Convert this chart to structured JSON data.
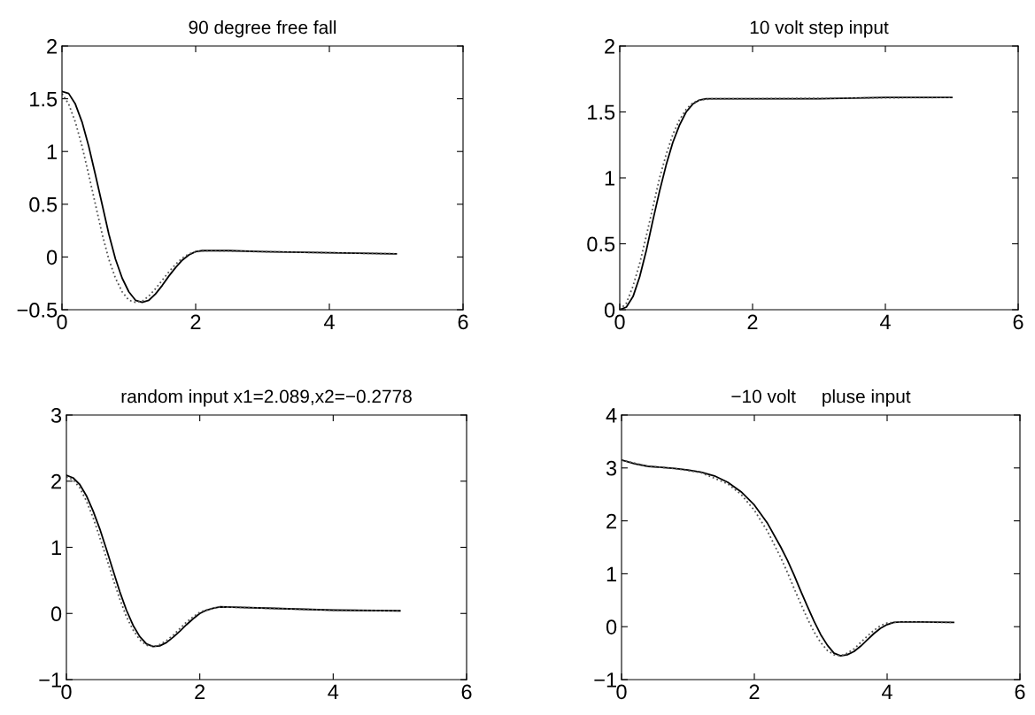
{
  "chart_data": [
    {
      "type": "line",
      "title": "90 degree free fall",
      "xlim": [
        0,
        6
      ],
      "xticks": [
        0,
        2,
        4,
        6
      ],
      "ylim": [
        -0.5,
        2
      ],
      "yticks": [
        -0.5,
        0,
        0.5,
        1,
        1.5,
        2
      ],
      "grid": false,
      "legend": false,
      "series": [
        {
          "color": "#000000",
          "line_style": "solid",
          "x": [
            0,
            0.1,
            0.2,
            0.3,
            0.4,
            0.5,
            0.6,
            0.7,
            0.8,
            0.9,
            1.0,
            1.1,
            1.2,
            1.3,
            1.4,
            1.5,
            1.6,
            1.7,
            1.8,
            1.9,
            2.0,
            2.1,
            2.5,
            3,
            4,
            5
          ],
          "values": [
            1.57,
            1.55,
            1.45,
            1.28,
            1.05,
            0.78,
            0.5,
            0.22,
            -0.02,
            -0.2,
            -0.33,
            -0.41,
            -0.43,
            -0.41,
            -0.35,
            -0.27,
            -0.18,
            -0.1,
            -0.03,
            0.02,
            0.05,
            0.06,
            0.06,
            0.05,
            0.04,
            0.03
          ]
        },
        {
          "color": "#555555",
          "line_style": "dotted",
          "x": [
            0,
            0.1,
            0.2,
            0.3,
            0.4,
            0.5,
            0.6,
            0.7,
            0.8,
            0.9,
            1.0,
            1.1,
            1.2,
            1.3,
            1.4,
            1.5,
            1.6,
            1.7,
            1.8,
            1.9,
            2.0,
            2.2,
            3,
            4,
            5
          ],
          "values": [
            1.55,
            1.45,
            1.28,
            1.05,
            0.78,
            0.5,
            0.22,
            -0.02,
            -0.2,
            -0.33,
            -0.41,
            -0.43,
            -0.42,
            -0.37,
            -0.3,
            -0.22,
            -0.14,
            -0.07,
            -0.01,
            0.03,
            0.05,
            0.06,
            0.05,
            0.04,
            0.03
          ]
        }
      ]
    },
    {
      "type": "line",
      "title": "10 volt step input",
      "xlim": [
        0,
        6
      ],
      "xticks": [
        0,
        2,
        4,
        6
      ],
      "ylim": [
        0,
        2
      ],
      "yticks": [
        0,
        0.5,
        1,
        1.5,
        2
      ],
      "grid": false,
      "legend": false,
      "series": [
        {
          "color": "#000000",
          "line_style": "solid",
          "x": [
            0,
            0.1,
            0.2,
            0.3,
            0.4,
            0.5,
            0.6,
            0.7,
            0.8,
            0.9,
            1.0,
            1.1,
            1.2,
            1.3,
            1.5,
            2,
            3,
            4,
            5
          ],
          "values": [
            0,
            0.02,
            0.1,
            0.25,
            0.45,
            0.68,
            0.9,
            1.1,
            1.27,
            1.4,
            1.5,
            1.56,
            1.59,
            1.6,
            1.6,
            1.6,
            1.6,
            1.61,
            1.61
          ]
        },
        {
          "color": "#555555",
          "line_style": "dotted",
          "x": [
            0,
            0.1,
            0.2,
            0.3,
            0.4,
            0.5,
            0.6,
            0.7,
            0.8,
            0.9,
            1.0,
            1.1,
            1.2,
            1.4,
            2,
            5
          ],
          "values": [
            0,
            0.05,
            0.18,
            0.35,
            0.56,
            0.78,
            1.0,
            1.18,
            1.33,
            1.44,
            1.52,
            1.57,
            1.59,
            1.6,
            1.6,
            1.61
          ]
        }
      ]
    },
    {
      "type": "line",
      "title": "random input x1=2.089,x2=−0.2778",
      "xlim": [
        0,
        6
      ],
      "xticks": [
        0,
        2,
        4,
        6
      ],
      "ylim": [
        -1,
        3
      ],
      "yticks": [
        -1,
        0,
        1,
        2,
        3
      ],
      "grid": false,
      "legend": false,
      "series": [
        {
          "color": "#000000",
          "line_style": "solid",
          "x": [
            0,
            0.1,
            0.2,
            0.3,
            0.4,
            0.5,
            0.6,
            0.7,
            0.8,
            0.9,
            1.0,
            1.1,
            1.2,
            1.3,
            1.4,
            1.5,
            1.6,
            1.7,
            1.8,
            1.9,
            2.0,
            2.1,
            2.2,
            2.3,
            3,
            4,
            5
          ],
          "values": [
            2.09,
            2.05,
            1.95,
            1.78,
            1.55,
            1.28,
            0.97,
            0.65,
            0.33,
            0.05,
            -0.18,
            -0.35,
            -0.46,
            -0.5,
            -0.49,
            -0.44,
            -0.36,
            -0.27,
            -0.17,
            -0.08,
            0.0,
            0.05,
            0.08,
            0.1,
            0.08,
            0.05,
            0.04
          ]
        },
        {
          "color": "#555555",
          "line_style": "dotted",
          "x": [
            0,
            0.1,
            0.2,
            0.3,
            0.4,
            0.5,
            0.6,
            0.7,
            0.8,
            0.9,
            1.0,
            1.1,
            1.2,
            1.3,
            1.4,
            1.5,
            1.6,
            1.7,
            1.8,
            1.9,
            2.0,
            2.2,
            2.3,
            3,
            4,
            5
          ],
          "values": [
            2.07,
            2.02,
            1.9,
            1.7,
            1.45,
            1.15,
            0.84,
            0.52,
            0.22,
            -0.05,
            -0.25,
            -0.4,
            -0.48,
            -0.5,
            -0.47,
            -0.41,
            -0.33,
            -0.23,
            -0.13,
            -0.05,
            0.02,
            0.08,
            0.1,
            0.08,
            0.05,
            0.04
          ]
        }
      ]
    },
    {
      "type": "line",
      "title": "−10 volt     pluse input",
      "xlim": [
        0,
        6
      ],
      "xticks": [
        0,
        2,
        4,
        6
      ],
      "ylim": [
        -1,
        4
      ],
      "yticks": [
        -1,
        0,
        1,
        2,
        3,
        4
      ],
      "grid": false,
      "legend": false,
      "series": [
        {
          "color": "#000000",
          "line_style": "solid",
          "x": [
            0,
            0.2,
            0.4,
            0.6,
            0.8,
            1.0,
            1.2,
            1.4,
            1.6,
            1.8,
            2.0,
            2.2,
            2.4,
            2.5,
            2.6,
            2.7,
            2.8,
            2.9,
            3.0,
            3.1,
            3.2,
            3.3,
            3.4,
            3.5,
            3.6,
            3.7,
            3.8,
            3.9,
            4.0,
            4.1,
            4.2,
            4.5,
            5
          ],
          "values": [
            3.15,
            3.08,
            3.03,
            3.01,
            2.99,
            2.96,
            2.92,
            2.85,
            2.73,
            2.55,
            2.3,
            1.95,
            1.5,
            1.25,
            0.97,
            0.67,
            0.38,
            0.1,
            -0.15,
            -0.35,
            -0.5,
            -0.55,
            -0.53,
            -0.47,
            -0.37,
            -0.25,
            -0.13,
            -0.03,
            0.04,
            0.08,
            0.09,
            0.09,
            0.08
          ]
        },
        {
          "color": "#555555",
          "line_style": "dotted",
          "x": [
            0,
            0.4,
            0.8,
            1.2,
            1.6,
            1.8,
            2.0,
            2.2,
            2.4,
            2.5,
            2.6,
            2.7,
            2.8,
            2.9,
            3.0,
            3.1,
            3.2,
            3.3,
            3.4,
            3.5,
            3.6,
            3.7,
            3.8,
            3.9,
            4.0,
            4.2,
            5
          ],
          "values": [
            3.15,
            3.03,
            2.99,
            2.91,
            2.7,
            2.5,
            2.2,
            1.8,
            1.3,
            1.02,
            0.72,
            0.43,
            0.15,
            -0.1,
            -0.3,
            -0.45,
            -0.53,
            -0.55,
            -0.5,
            -0.42,
            -0.3,
            -0.18,
            -0.07,
            0.02,
            0.07,
            0.09,
            0.08
          ]
        }
      ]
    }
  ]
}
